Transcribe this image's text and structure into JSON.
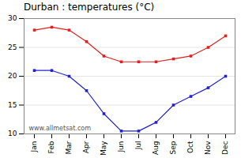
{
  "chart_data": {
    "type": "line",
    "title": "Durban : temperatures (°C)",
    "categories": [
      "Jan",
      "Feb",
      "Mar",
      "Apr",
      "May",
      "Jun",
      "Jul",
      "Aug",
      "Sep",
      "Oct",
      "Nov",
      "Dec"
    ],
    "series": [
      {
        "color": "#dd2222",
        "marker": "square",
        "values": [
          28,
          28.5,
          28,
          26,
          23.5,
          22.5,
          22.5,
          22.5,
          23,
          23.5,
          25,
          27
        ]
      },
      {
        "color": "#2222cc",
        "marker": "square",
        "values": [
          21,
          21,
          20,
          17.5,
          13.5,
          10.5,
          10.5,
          12,
          15,
          16.5,
          18,
          20
        ]
      }
    ],
    "ylim": [
      10,
      30
    ],
    "yticks": [
      10,
      15,
      20,
      25,
      30
    ],
    "grid": true,
    "annotation": "www.allmetsat.com"
  }
}
